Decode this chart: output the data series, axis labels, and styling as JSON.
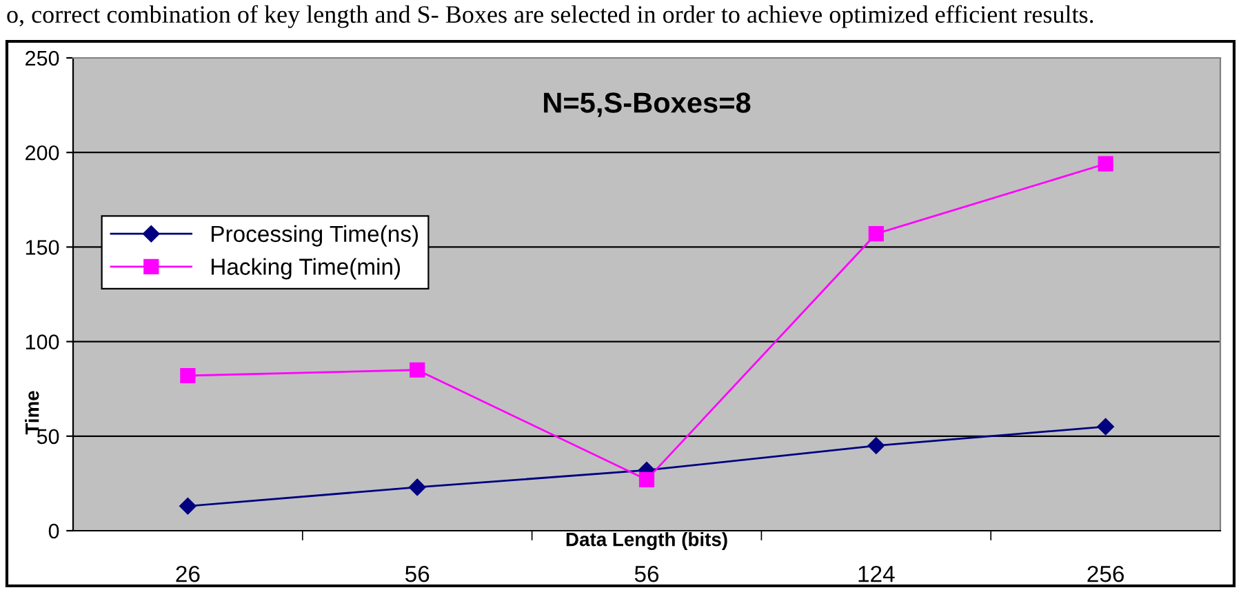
{
  "chart_data": {
    "type": "line",
    "title": "N=5,S-Boxes=8",
    "xlabel": "Data Length (bits)",
    "ylabel": "Time",
    "annotations": [
      "o, correct combination of key length and S- Boxes are selected in order to achieve optimized efficient results."
    ],
    "categories": [
      "26",
      "56",
      "56",
      "124",
      "256"
    ],
    "series": [
      {
        "name": "Processing Time(ns)",
        "color": "#000080",
        "marker": "diamond",
        "values": [
          13,
          23,
          32,
          45,
          55
        ]
      },
      {
        "name": "Hacking Time(min)",
        "color": "#ff00ff",
        "marker": "square",
        "values": [
          82,
          85,
          27,
          157,
          194
        ]
      }
    ],
    "ylim": [
      0,
      250
    ],
    "yticks": [
      0,
      50,
      100,
      150,
      200,
      250
    ],
    "grid": "y",
    "legend": "top left"
  }
}
